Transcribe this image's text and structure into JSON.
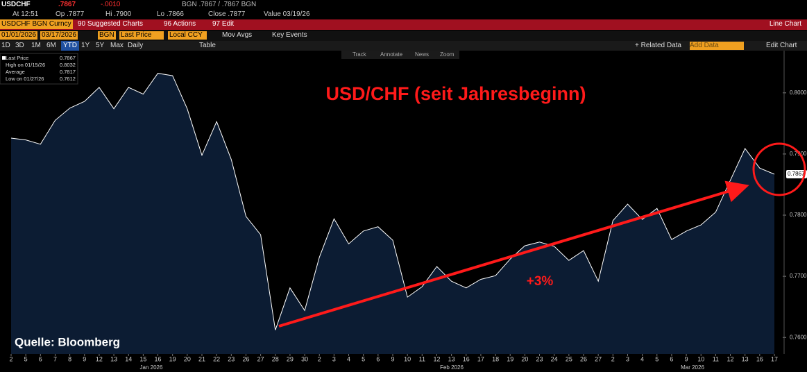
{
  "header": {
    "ticker": "USDCHF",
    "price": ".7867",
    "change": "-.0010",
    "quote": "BGN .7867 / .7867 BGN",
    "row2": [
      "At 12:51",
      "Op .7877",
      "Hi .7900",
      "Lo .7866",
      "Close .7877",
      "Value 03/19/26"
    ],
    "menu": [
      "USDCHF BGN Curncy",
      "90 Suggested Charts",
      "96 Actions",
      "97 Edit"
    ],
    "chart_kind": "Line Chart",
    "range_from": "01/01/2026",
    "range_to": "03/17/2026",
    "source": "BGN",
    "field": "Last Price",
    "currency": "Local CCY",
    "mov_avgs": "Mov Avgs",
    "key_events": "Key Events",
    "periods": [
      "1D",
      "3D",
      "1M",
      "6M",
      "YTD",
      "1Y",
      "5Y",
      "Max",
      "Daily"
    ],
    "table": "Table",
    "related": "+ Related Data",
    "add_data": "Add Data",
    "edit_chart": "Edit Chart",
    "tools": [
      "Track",
      "Annotate",
      "News",
      "Zoom"
    ]
  },
  "stats": [
    {
      "label": "Last Price",
      "value": "0.7867"
    },
    {
      "label": "High on 01/15/26",
      "value": "0.8032"
    },
    {
      "label": "Average",
      "value": "0.7817"
    },
    {
      "label": "Low on 01/27/26",
      "value": "0.7612"
    }
  ],
  "chart_data": {
    "type": "line",
    "title": "USD/CHF (seit Jahresbeginn)",
    "annotation": "+3%",
    "source_note": "Quelle: Bloomberg",
    "categories": [
      "2",
      "5",
      "6",
      "7",
      "8",
      "9",
      "12",
      "13",
      "14",
      "15",
      "16",
      "19",
      "20",
      "21",
      "22",
      "23",
      "26",
      "27",
      "28",
      "29",
      "30",
      "2",
      "3",
      "4",
      "5",
      "6",
      "9",
      "10",
      "11",
      "12",
      "13",
      "16",
      "17",
      "18",
      "19",
      "20",
      "23",
      "24",
      "25",
      "26",
      "27",
      "2",
      "3",
      "4",
      "5",
      "6",
      "9",
      "10",
      "11",
      "12",
      "13",
      "16",
      "17"
    ],
    "months": [
      "Jan 2026",
      "Feb 2026",
      "Mar 2026"
    ],
    "series": [
      {
        "name": "Last Price",
        "color": "#ffffff",
        "fill": "#0c1c33",
        "values": [
          0.7926,
          0.7923,
          0.7916,
          0.7955,
          0.7975,
          0.7986,
          0.8009,
          0.7974,
          0.8009,
          0.7998,
          0.8032,
          0.8028,
          0.7974,
          0.7898,
          0.7953,
          0.7891,
          0.7798,
          0.7768,
          0.7612,
          0.7681,
          0.7644,
          0.7731,
          0.7794,
          0.7753,
          0.7774,
          0.7781,
          0.7759,
          0.7666,
          0.7683,
          0.7716,
          0.7692,
          0.7681,
          0.7695,
          0.7701,
          0.7728,
          0.775,
          0.7756,
          0.7749,
          0.7726,
          0.7742,
          0.7692,
          0.7791,
          0.7818,
          0.7793,
          0.7811,
          0.776,
          0.7774,
          0.7784,
          0.7805,
          0.7857,
          0.7909,
          0.7877,
          0.7867
        ]
      }
    ],
    "ylim": [
      0.7573,
      0.8069
    ],
    "yticks": [
      {
        "value": 0.8,
        "label": "0.8000"
      },
      {
        "value": 0.79,
        "label": "0.7900"
      },
      {
        "value": 0.78,
        "label": "0.7800"
      },
      {
        "value": 0.77,
        "label": "0.7700"
      },
      {
        "value": 0.76,
        "label": "0.7600"
      }
    ]
  }
}
